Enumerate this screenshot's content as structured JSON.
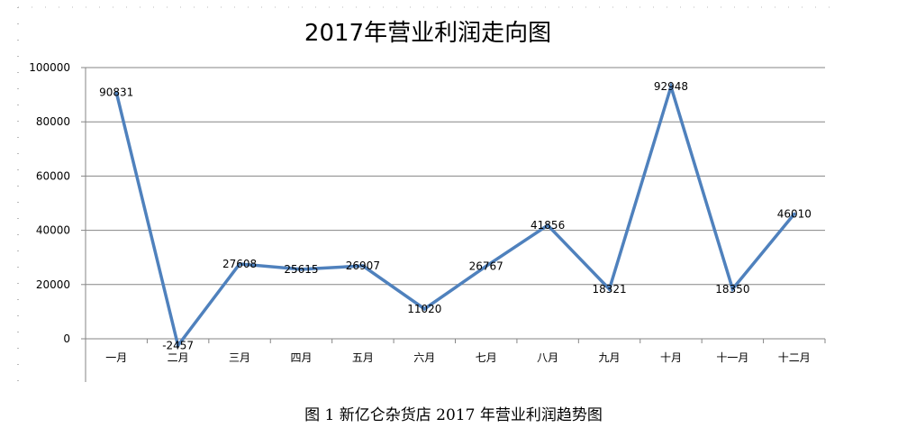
{
  "chart_data": {
    "type": "line",
    "title": "2017年营业利润走向图",
    "categories": [
      "一月",
      "二月",
      "三月",
      "四月",
      "五月",
      "六月",
      "七月",
      "八月",
      "九月",
      "十月",
      "十一月",
      "十二月"
    ],
    "series": [
      {
        "values": [
          90831,
          -2457,
          27608,
          25615,
          26907,
          11020,
          26767,
          41856,
          18321,
          92948,
          18350,
          46010
        ]
      }
    ],
    "ylim": [
      0,
      100000
    ],
    "yticks": [
      0,
      20000,
      40000,
      60000,
      80000,
      100000
    ],
    "grid": true,
    "legend": "none",
    "line_color": "#4f81bd"
  },
  "caption": "图 1 新亿仑杂货店 2017 年营业利润趋势图"
}
